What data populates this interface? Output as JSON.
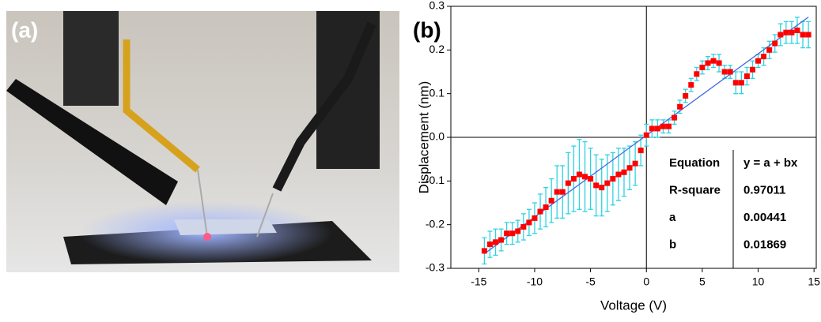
{
  "panel_labels": [
    "(a)",
    "(b)"
  ],
  "chart_data": {
    "type": "scatter",
    "x_label": "Voltage (V)",
    "y_label": "Displacement (nm)",
    "x": [
      -14.5,
      -14,
      -13.5,
      -13,
      -12.5,
      -12,
      -11.5,
      -11,
      -10.5,
      -10,
      -9.5,
      -9,
      -8.5,
      -8,
      -7.5,
      -7,
      -6.5,
      -6,
      -5.5,
      -5,
      -4.5,
      -4,
      -3.5,
      -3,
      -2.5,
      -2,
      -1.5,
      -1,
      -0.5,
      0,
      0.5,
      1,
      1.5,
      2,
      2.5,
      3,
      3.5,
      4,
      4.5,
      5,
      5.5,
      6,
      6.5,
      7,
      7.5,
      8,
      8.5,
      9,
      9.5,
      10,
      10.5,
      11,
      11.5,
      12,
      12.5,
      13,
      13.5,
      14,
      14.5
    ],
    "values": [
      -0.26,
      -0.245,
      -0.24,
      -0.235,
      -0.22,
      -0.22,
      -0.215,
      -0.205,
      -0.195,
      -0.185,
      -0.17,
      -0.16,
      -0.145,
      -0.125,
      -0.125,
      -0.105,
      -0.095,
      -0.085,
      -0.09,
      -0.095,
      -0.11,
      -0.115,
      -0.105,
      -0.095,
      -0.085,
      -0.08,
      -0.07,
      -0.06,
      -0.03,
      0.005,
      0.02,
      0.02,
      0.025,
      0.025,
      0.045,
      0.07,
      0.095,
      0.12,
      0.145,
      0.16,
      0.17,
      0.175,
      0.17,
      0.15,
      0.15,
      0.125,
      0.125,
      0.14,
      0.155,
      0.175,
      0.185,
      0.2,
      0.215,
      0.235,
      0.24,
      0.24,
      0.245,
      0.235,
      0.235
    ],
    "errors": [
      0.03,
      0.03,
      0.03,
      0.025,
      0.025,
      0.025,
      0.025,
      0.03,
      0.03,
      0.035,
      0.04,
      0.045,
      0.05,
      0.06,
      0.06,
      0.07,
      0.075,
      0.08,
      0.08,
      0.07,
      0.07,
      0.065,
      0.065,
      0.06,
      0.06,
      0.055,
      0.05,
      0.05,
      0.035,
      0.025,
      0.02,
      0.02,
      0.015,
      0.015,
      0.015,
      0.015,
      0.015,
      0.015,
      0.015,
      0.015,
      0.015,
      0.015,
      0.02,
      0.015,
      0.015,
      0.025,
      0.025,
      0.02,
      0.02,
      0.015,
      0.02,
      0.02,
      0.02,
      0.025,
      0.025,
      0.025,
      0.03,
      0.03,
      0.03
    ],
    "point_color": "#ff0000",
    "error_color": "#2ed3e0",
    "fit_color": "#4169e1",
    "fit": {
      "equation_label": "Equation",
      "equation": "y = a + bx",
      "r_square_label": "R-square",
      "r_square": 0.97011,
      "a_label": "a",
      "a": 0.00441,
      "b_label": "b",
      "b": 0.01869
    },
    "xlim": [
      -17.5,
      15.2
    ],
    "ylim": [
      -0.3,
      0.3
    ],
    "xticks": [
      -15,
      -10,
      -5,
      0,
      5,
      10,
      15
    ],
    "yticks": [
      0.3,
      0.2,
      0.1,
      {
        "value": 0,
        "label": "0.0"
      },
      -0.1,
      -0.2,
      -0.3
    ]
  }
}
